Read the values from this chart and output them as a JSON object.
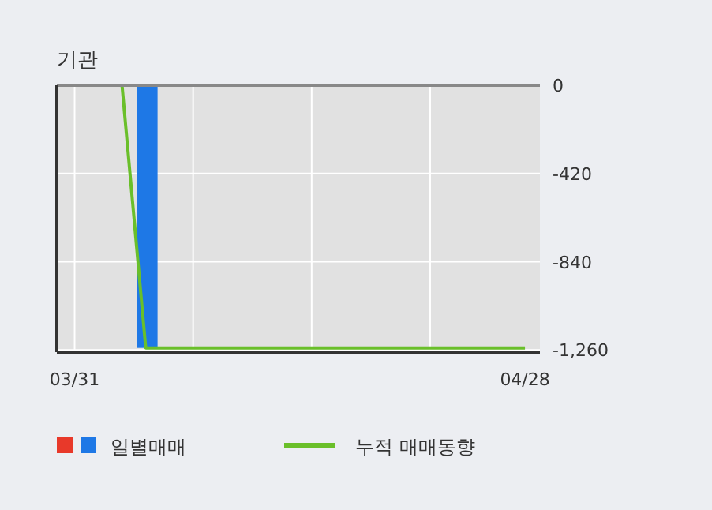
{
  "chart_data": {
    "type": "bar",
    "title": "기관",
    "categories": [
      "03/31",
      null,
      null,
      null,
      null,
      null,
      null,
      null,
      null,
      null,
      null,
      null,
      null,
      null,
      null,
      null,
      null,
      null,
      null,
      "04/28"
    ],
    "series": [
      {
        "color": "#e8392a",
        "values": [
          null,
          null,
          null,
          null,
          null,
          null,
          null,
          null,
          null,
          null,
          null,
          null,
          null,
          null,
          null,
          null,
          null,
          null,
          null,
          null
        ]
      },
      {
        "name": "일별매매",
        "color": "#1e78e6",
        "values": [
          null,
          null,
          null,
          -1250,
          null,
          null,
          null,
          null,
          null,
          null,
          null,
          null,
          null,
          null,
          null,
          null,
          null,
          null,
          null,
          null
        ]
      },
      {
        "name": "누적 매매동향",
        "type": "line",
        "color": "#6abf2a",
        "values": [
          0,
          0,
          0,
          -1250,
          -1250,
          -1250,
          -1250,
          -1250,
          -1250,
          -1250,
          -1250,
          -1250,
          -1250,
          -1250,
          -1250,
          -1250,
          -1250,
          -1250,
          -1250,
          -1250
        ]
      }
    ],
    "ylim": [
      -1270,
      0
    ],
    "yticks": [
      0,
      {
        "value": -420,
        "label": "-420"
      },
      {
        "value": -840,
        "label": "-840"
      },
      {
        "value": -1260,
        "label": "-1,260"
      }
    ],
    "grid": true,
    "legend": "bottom"
  }
}
